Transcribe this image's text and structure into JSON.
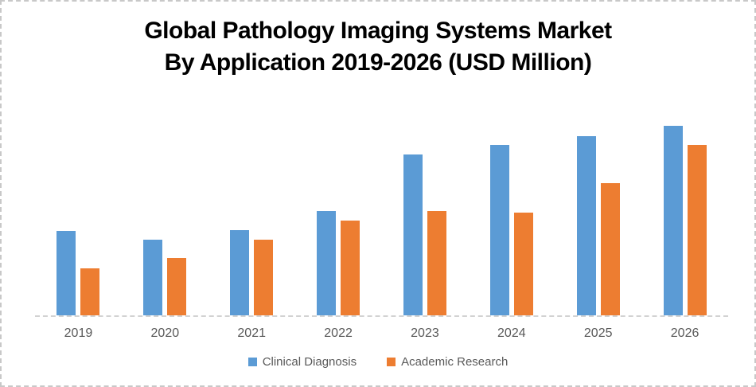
{
  "chart": {
    "title_line1": "Global Pathology Imaging Systems Market",
    "title_line2": "By Application 2019-2026 (USD Million)"
  },
  "legend": {
    "items": [
      {
        "label": "Clinical Diagnosis",
        "color": "#5B9BD5",
        "swatch": "blue-legend-swatch"
      },
      {
        "label": "Academic Research",
        "color": "#ED7D31",
        "swatch": "orange-legend-swatch"
      }
    ]
  },
  "colors": {
    "clinical_diagnosis": "#5B9BD5",
    "academic_research": "#ED7D31",
    "axis_text": "#595959",
    "axis_line": "#D2D2D2",
    "frame_border": "#C8C8C8",
    "title_text": "#000000",
    "background": "#FFFFFF"
  },
  "chart_data": {
    "type": "bar",
    "title": "Global Pathology Imaging Systems Market By Application 2019-2026 (USD Million)",
    "categories": [
      "2019",
      "2020",
      "2021",
      "2022",
      "2023",
      "2024",
      "2025",
      "2026"
    ],
    "series": [
      {
        "name": "Clinical Diagnosis",
        "color": "#5B9BD5",
        "values": [
          106,
          95,
          107,
          131,
          202,
          214,
          225,
          238
        ]
      },
      {
        "name": "Academic Research",
        "color": "#ED7D31",
        "values": [
          59,
          72,
          95,
          119,
          131,
          129,
          166,
          214
        ]
      }
    ],
    "xlabel": "",
    "ylabel": "",
    "ylim": [
      0,
      264
    ],
    "value_unit": "relative (estimated from bar heights; no y-axis scale shown)",
    "y_axis_labels": "none",
    "gridlines": false,
    "legend_position": "bottom"
  }
}
